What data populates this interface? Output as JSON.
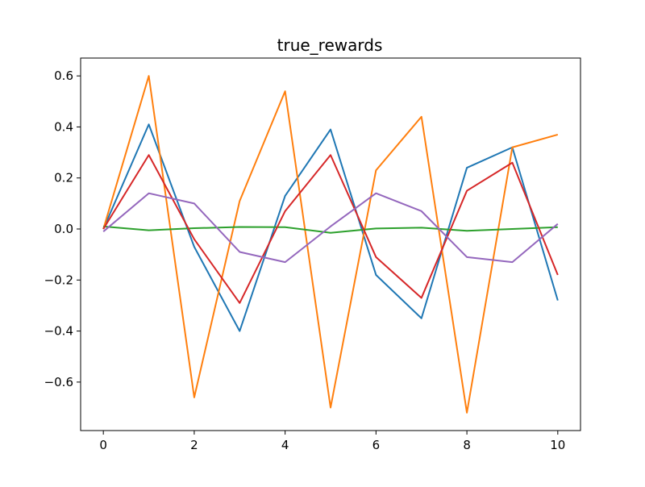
{
  "chart_data": {
    "type": "line",
    "title": "true_rewards",
    "xlabel": "",
    "ylabel": "",
    "x": [
      0,
      1,
      2,
      3,
      4,
      5,
      6,
      7,
      8,
      9,
      10
    ],
    "xlim": [
      -0.5,
      10.5
    ],
    "ylim": [
      -0.79,
      0.67
    ],
    "xticks": [
      0,
      2,
      4,
      6,
      8,
      10
    ],
    "xtick_labels": [
      "0",
      "2",
      "4",
      "6",
      "8",
      "10"
    ],
    "yticks": [
      -0.6,
      -0.4,
      -0.2,
      0.0,
      0.2,
      0.4,
      0.6
    ],
    "ytick_labels": [
      "−0.6",
      "−0.4",
      "−0.2",
      "0.0",
      "0.2",
      "0.4",
      "0.6"
    ],
    "grid": false,
    "legend": "none",
    "series": [
      {
        "color": "#1f77b4",
        "values": [
          0.0,
          0.41,
          -0.07,
          -0.4,
          0.13,
          0.39,
          -0.18,
          -0.35,
          0.24,
          0.32,
          -0.28
        ]
      },
      {
        "color": "#ff7f0e",
        "values": [
          0.0,
          0.6,
          -0.66,
          0.11,
          0.54,
          -0.7,
          0.23,
          0.44,
          -0.72,
          0.32,
          0.37
        ]
      },
      {
        "color": "#2ca02c",
        "values": [
          0.01,
          -0.005,
          0.003,
          0.008,
          0.007,
          -0.015,
          0.002,
          0.005,
          -0.007,
          0.0,
          0.007
        ]
      },
      {
        "color": "#d62728",
        "values": [
          0.0,
          0.29,
          -0.04,
          -0.29,
          0.07,
          0.29,
          -0.11,
          -0.27,
          0.15,
          0.26,
          -0.18
        ]
      },
      {
        "color": "#9467bd",
        "values": [
          -0.01,
          0.14,
          0.1,
          -0.09,
          -0.13,
          0.01,
          0.14,
          0.07,
          -0.11,
          -0.13,
          0.02
        ]
      }
    ]
  }
}
